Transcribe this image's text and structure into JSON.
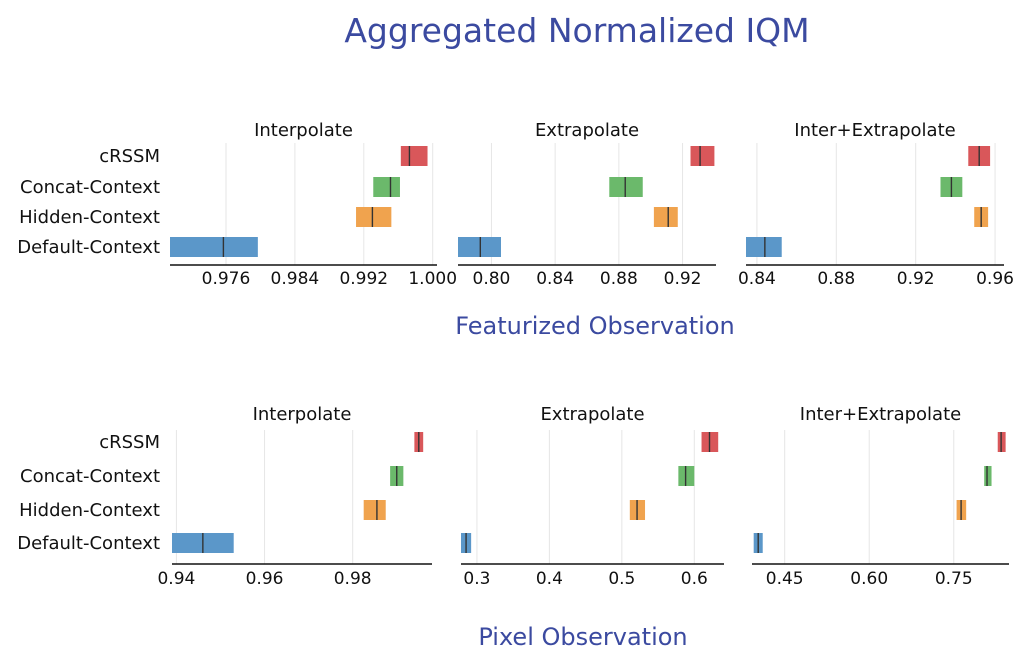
{
  "title": "Aggregated Normalized IQM",
  "colors": {
    "cRSSM": "#d9575a",
    "Concat-Context": "#6bb96b",
    "Hidden-Context": "#f0a34e",
    "Default-Context": "#5b97c9",
    "title": "#3b4aa0"
  },
  "chart_data": [
    {
      "section": "Featurized Observation",
      "type": "interval",
      "categories": [
        "cRSSM",
        "Concat-Context",
        "Hidden-Context",
        "Default-Context"
      ],
      "panels": [
        {
          "title": "Interpolate",
          "xlim": [
            0.9695,
            1.0005
          ],
          "ticks": [
            0.976,
            0.984,
            0.992,
            1.0
          ],
          "tick_labels": [
            "0.976",
            "0.984",
            "0.992",
            "1.000"
          ],
          "intervals": [
            {
              "name": "cRSSM",
              "low": 0.9963,
              "high": 0.9994,
              "median": 0.9973
            },
            {
              "name": "Concat-Context",
              "low": 0.9931,
              "high": 0.9962,
              "median": 0.9951
            },
            {
              "name": "Hidden-Context",
              "low": 0.9911,
              "high": 0.9952,
              "median": 0.993
            },
            {
              "name": "Default-Context",
              "low": 0.9695,
              "high": 0.9797,
              "median": 0.9757
            }
          ]
        },
        {
          "title": "Extrapolate",
          "xlim": [
            0.779,
            0.941
          ],
          "ticks": [
            0.8,
            0.84,
            0.88,
            0.92
          ],
          "tick_labels": [
            "0.80",
            "0.84",
            "0.88",
            "0.92"
          ],
          "intervals": [
            {
              "name": "cRSSM",
              "low": 0.925,
              "high": 0.94,
              "median": 0.931
            },
            {
              "name": "Concat-Context",
              "low": 0.874,
              "high": 0.895,
              "median": 0.884
            },
            {
              "name": "Hidden-Context",
              "low": 0.902,
              "high": 0.917,
              "median": 0.911
            },
            {
              "name": "Default-Context",
              "low": 0.779,
              "high": 0.806,
              "median": 0.793
            }
          ]
        },
        {
          "title": "Inter+Extrapolate",
          "xlim": [
            0.8345,
            0.9645
          ],
          "ticks": [
            0.84,
            0.88,
            0.92,
            0.96
          ],
          "tick_labels": [
            "0.84",
            "0.88",
            "0.92",
            "0.96"
          ],
          "intervals": [
            {
              "name": "cRSSM",
              "low": 0.9465,
              "high": 0.9575,
              "median": 0.952
            },
            {
              "name": "Concat-Context",
              "low": 0.9325,
              "high": 0.9435,
              "median": 0.938
            },
            {
              "name": "Hidden-Context",
              "low": 0.9495,
              "high": 0.9565,
              "median": 0.953
            },
            {
              "name": "Default-Context",
              "low": 0.8345,
              "high": 0.8525,
              "median": 0.844
            }
          ]
        }
      ]
    },
    {
      "section": "Pixel Observation",
      "type": "interval",
      "categories": [
        "cRSSM",
        "Concat-Context",
        "Hidden-Context",
        "Default-Context"
      ],
      "panels": [
        {
          "title": "Interpolate",
          "xlim": [
            0.939,
            0.998
          ],
          "ticks": [
            0.94,
            0.96,
            0.98
          ],
          "tick_labels": [
            "0.94",
            "0.96",
            "0.98"
          ],
          "intervals": [
            {
              "name": "cRSSM",
              "low": 0.994,
              "high": 0.996,
              "median": 0.995
            },
            {
              "name": "Concat-Context",
              "low": 0.9885,
              "high": 0.9915,
              "median": 0.99
            },
            {
              "name": "Hidden-Context",
              "low": 0.9825,
              "high": 0.9875,
              "median": 0.9855
            },
            {
              "name": "Default-Context",
              "low": 0.939,
              "high": 0.953,
              "median": 0.946
            }
          ]
        },
        {
          "title": "Extrapolate",
          "xlim": [
            0.278,
            0.641
          ],
          "ticks": [
            0.3,
            0.4,
            0.5,
            0.6
          ],
          "tick_labels": [
            "0.3",
            "0.4",
            "0.5",
            "0.6"
          ],
          "intervals": [
            {
              "name": "cRSSM",
              "low": 0.61,
              "high": 0.633,
              "median": 0.621
            },
            {
              "name": "Concat-Context",
              "low": 0.578,
              "high": 0.6,
              "median": 0.588
            },
            {
              "name": "Hidden-Context",
              "low": 0.511,
              "high": 0.532,
              "median": 0.521
            },
            {
              "name": "Default-Context",
              "low": 0.278,
              "high": 0.292,
              "median": 0.285
            }
          ]
        },
        {
          "title": "Inter+Extrapolate",
          "xlim": [
            0.392,
            0.848
          ],
          "ticks": [
            0.45,
            0.6,
            0.75
          ],
          "tick_labels": [
            "0.45",
            "0.60",
            "0.75"
          ],
          "intervals": [
            {
              "name": "cRSSM",
              "low": 0.828,
              "high": 0.842,
              "median": 0.834
            },
            {
              "name": "Concat-Context",
              "low": 0.804,
              "high": 0.817,
              "median": 0.809
            },
            {
              "name": "Hidden-Context",
              "low": 0.755,
              "high": 0.772,
              "median": 0.763
            },
            {
              "name": "Default-Context",
              "low": 0.395,
              "high": 0.411,
              "median": 0.403
            }
          ]
        }
      ]
    }
  ]
}
